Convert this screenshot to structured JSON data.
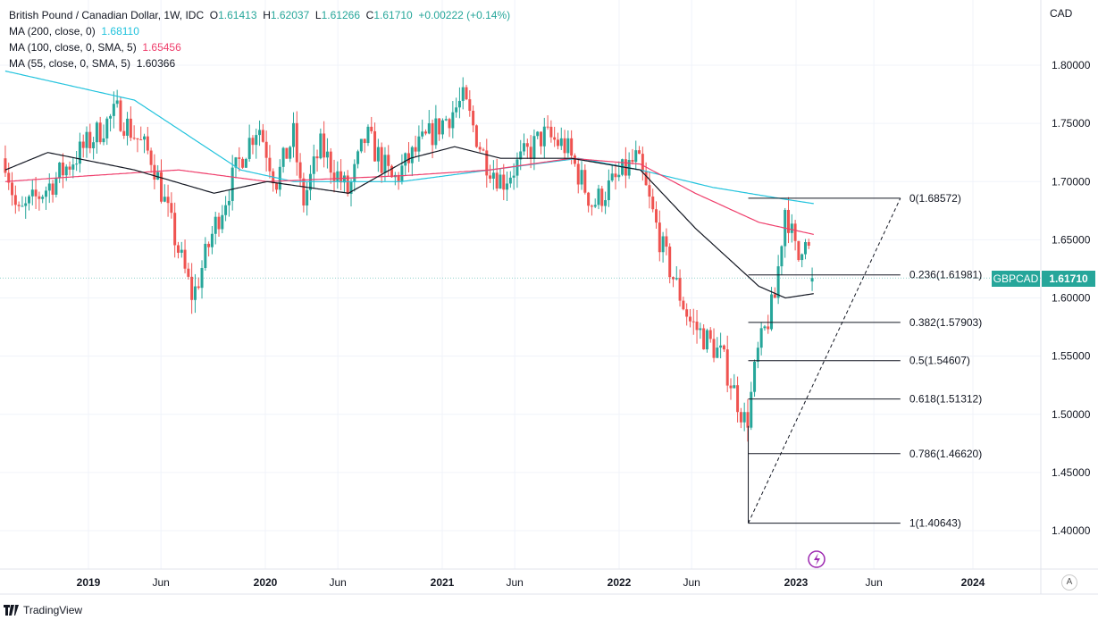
{
  "legend": {
    "title": "British Pound / Canadian Dollar, 1W, IDC",
    "o_label": "O",
    "o": "1.61413",
    "h_label": "H",
    "h": "1.62037",
    "l_label": "L",
    "l": "1.61266",
    "c_label": "C",
    "c": "1.61710",
    "change": "+0.00222 (+0.14%)",
    "ma200_label": "MA (200, close, 0)",
    "ma200": "1.68110",
    "ma100_label": "MA (100, close, 0, SMA, 5)",
    "ma100": "1.65456",
    "ma55_label": "MA (55, close, 0, SMA, 5)",
    "ma55": "1.60366"
  },
  "symbol_badge": "GBPCAD",
  "price_badge": "1.61710",
  "currency": "CAD",
  "brand": "TradingView",
  "auto_button": "A",
  "colors": {
    "up": "#26a69a",
    "down": "#ef5350",
    "ma200": "#22c3dd",
    "ma100": "#ef3f6c",
    "ma55": "#131722"
  },
  "chart_data": {
    "type": "candlestick",
    "ylim": [
      1.37,
      1.83
    ],
    "y_ticks": [
      "1.80000",
      "1.75000",
      "1.70000",
      "1.65000",
      "1.60000",
      "1.55000",
      "1.50000",
      "1.45000",
      "1.40000"
    ],
    "x_ticks": [
      {
        "t": 2019.0,
        "label": "2019"
      },
      {
        "t": 2019.41,
        "label": "Jun"
      },
      {
        "t": 2020.0,
        "label": "2020"
      },
      {
        "t": 2020.41,
        "label": "Jun"
      },
      {
        "t": 2021.0,
        "label": "2021"
      },
      {
        "t": 2021.41,
        "label": "Jun"
      },
      {
        "t": 2022.0,
        "label": "2022"
      },
      {
        "t": 2022.41,
        "label": "Jun"
      },
      {
        "t": 2023.0,
        "label": "2023"
      },
      {
        "t": 2023.44,
        "label": "Jun"
      },
      {
        "t": 2024.0,
        "label": "2024"
      }
    ],
    "price_path": [
      [
        2018.53,
        1.72
      ],
      [
        2018.6,
        1.67
      ],
      [
        2018.8,
        1.7
      ],
      [
        2019.16,
        1.76
      ],
      [
        2019.36,
        1.72
      ],
      [
        2019.51,
        1.64
      ],
      [
        2019.59,
        1.6
      ],
      [
        2019.71,
        1.66
      ],
      [
        2019.86,
        1.72
      ],
      [
        2019.96,
        1.75
      ],
      [
        2020.06,
        1.7
      ],
      [
        2020.16,
        1.74
      ],
      [
        2020.21,
        1.68
      ],
      [
        2020.31,
        1.73
      ],
      [
        2020.47,
        1.69
      ],
      [
        2020.57,
        1.74
      ],
      [
        2020.72,
        1.7
      ],
      [
        2020.87,
        1.73
      ],
      [
        2021.12,
        1.77
      ],
      [
        2021.24,
        1.72
      ],
      [
        2021.34,
        1.7
      ],
      [
        2021.57,
        1.74
      ],
      [
        2021.7,
        1.73
      ],
      [
        2021.85,
        1.68
      ],
      [
        2022.1,
        1.72
      ],
      [
        2022.25,
        1.64
      ],
      [
        2022.4,
        1.58
      ],
      [
        2022.58,
        1.55
      ],
      [
        2022.72,
        1.49
      ],
      [
        2022.78,
        1.55
      ],
      [
        2022.88,
        1.6
      ],
      [
        2022.94,
        1.68
      ],
      [
        2023.01,
        1.63
      ],
      [
        2023.05,
        1.66
      ],
      [
        2023.1,
        1.6171
      ]
    ],
    "ma200": [
      [
        2018.53,
        1.795
      ],
      [
        2019.26,
        1.77
      ],
      [
        2019.86,
        1.71
      ],
      [
        2020.16,
        1.7
      ],
      [
        2020.77,
        1.7
      ],
      [
        2021.27,
        1.71
      ],
      [
        2021.77,
        1.72
      ],
      [
        2022.12,
        1.71
      ],
      [
        2022.53,
        1.695
      ],
      [
        2022.93,
        1.685
      ],
      [
        2023.1,
        1.6811
      ]
    ],
    "ma100": [
      [
        2018.53,
        1.7
      ],
      [
        2019.0,
        1.705
      ],
      [
        2019.51,
        1.71
      ],
      [
        2020.01,
        1.7
      ],
      [
        2020.77,
        1.705
      ],
      [
        2021.27,
        1.71
      ],
      [
        2021.73,
        1.72
      ],
      [
        2022.12,
        1.715
      ],
      [
        2022.43,
        1.69
      ],
      [
        2022.79,
        1.665
      ],
      [
        2023.1,
        1.6546
      ]
    ],
    "ma55": [
      [
        2018.53,
        1.71
      ],
      [
        2018.77,
        1.725
      ],
      [
        2019.26,
        1.71
      ],
      [
        2019.71,
        1.69
      ],
      [
        2020.01,
        1.7
      ],
      [
        2020.47,
        1.69
      ],
      [
        2020.82,
        1.72
      ],
      [
        2021.07,
        1.73
      ],
      [
        2021.33,
        1.72
      ],
      [
        2021.73,
        1.72
      ],
      [
        2022.12,
        1.71
      ],
      [
        2022.43,
        1.66
      ],
      [
        2022.79,
        1.61
      ],
      [
        2022.94,
        1.6
      ],
      [
        2023.1,
        1.6037
      ]
    ],
    "fib": {
      "t_start": 2022.73,
      "t_end": 2023.59,
      "low": 1.40643,
      "high": 1.68572,
      "levels": [
        {
          "label": "0(1.68572)",
          "v": 1.68572
        },
        {
          "label": "0.236(1.61981)",
          "v": 1.61981
        },
        {
          "label": "0.382(1.57903)",
          "v": 1.57903
        },
        {
          "label": "0.5(1.54607)",
          "v": 1.54607
        },
        {
          "label": "0.618(1.51312)",
          "v": 1.51312
        },
        {
          "label": "0.786(1.46620)",
          "v": 1.4662
        },
        {
          "label": "1(1.40643)",
          "v": 1.40643
        }
      ]
    }
  }
}
